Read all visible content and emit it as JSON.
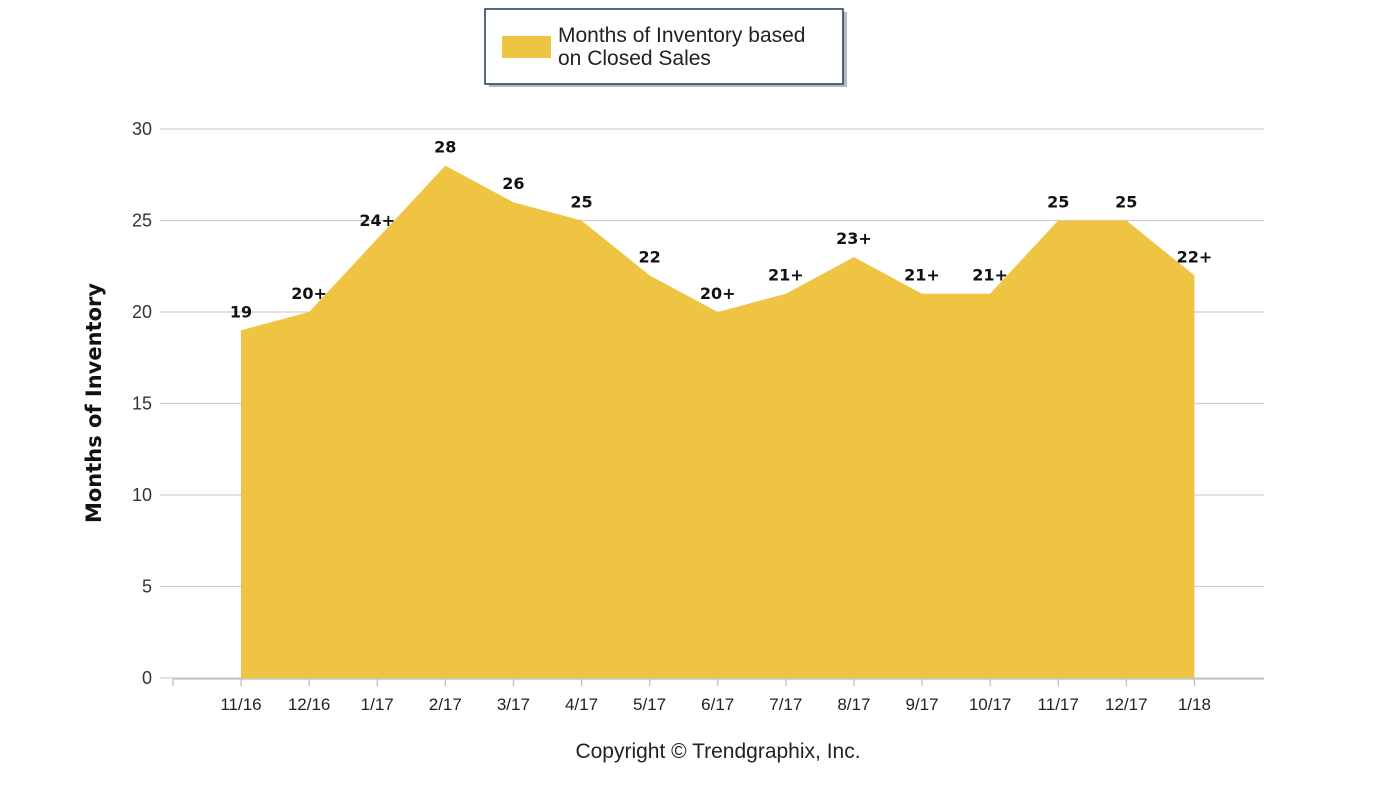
{
  "chart_data": {
    "type": "area",
    "categories": [
      "11/16",
      "12/16",
      "1/17",
      "2/17",
      "3/17",
      "4/17",
      "5/17",
      "6/17",
      "7/17",
      "8/17",
      "9/17",
      "10/17",
      "11/17",
      "12/17",
      "1/18"
    ],
    "series": [
      {
        "name": "Months of Inventory based on Closed Sales",
        "values": [
          19,
          20,
          24,
          28,
          26,
          25,
          22,
          20,
          21,
          23,
          21,
          21,
          25,
          25,
          22
        ],
        "labels": [
          "19",
          "20+",
          "24+",
          "28",
          "26",
          "25",
          "22",
          "20+",
          "21+",
          "23+",
          "21+",
          "21+",
          "25",
          "25",
          "22+"
        ],
        "color": "#EFC443"
      }
    ],
    "legend": {
      "line1": "Months of Inventory based",
      "line2": "on Closed Sales",
      "position": "top-center"
    },
    "ylabel": "Months of Inventory",
    "xlabel": "",
    "ylim": [
      0,
      30
    ],
    "yticks": [
      0,
      5,
      10,
      15,
      20,
      25,
      30
    ],
    "grid": true
  },
  "footer": "Copyright © Trendgraphix, Inc."
}
